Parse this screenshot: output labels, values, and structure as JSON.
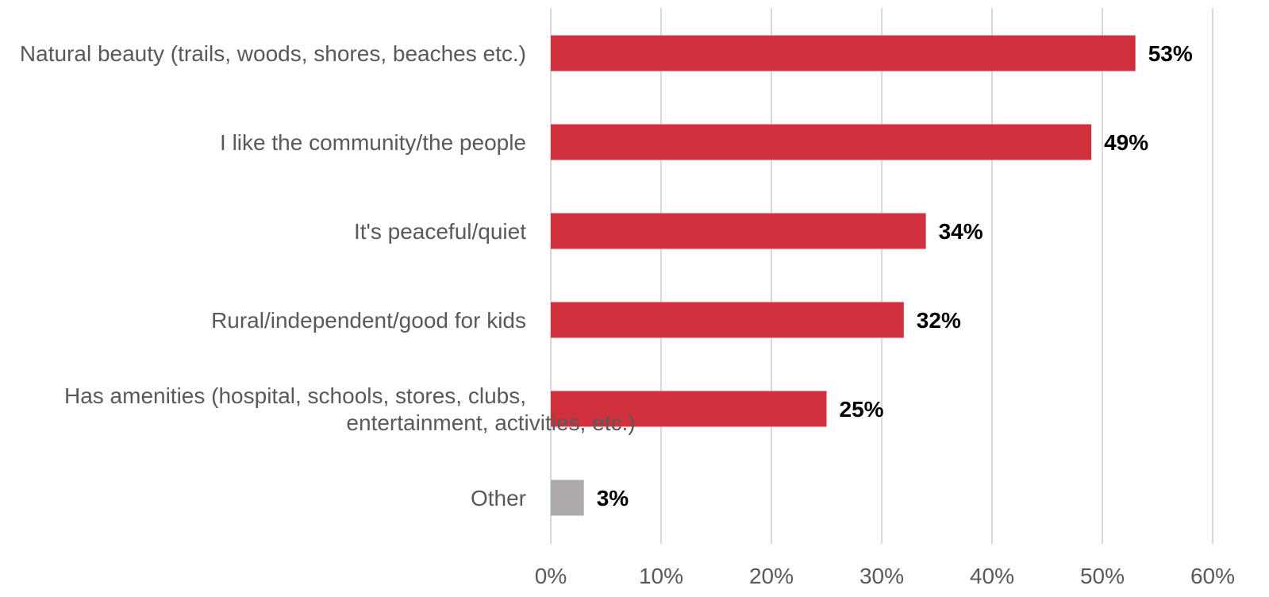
{
  "chart_data": {
    "type": "bar",
    "orientation": "horizontal",
    "categories": [
      [
        "Natural beauty (trails, woods, shores, beaches etc.)"
      ],
      [
        "I like the community/the people"
      ],
      [
        "It's peaceful/quiet"
      ],
      [
        "Rural/independent/good for kids"
      ],
      [
        "Has amenities (hospital, schools, stores, clubs,",
        "entertainment, activities, etc.)"
      ],
      [
        "Other"
      ]
    ],
    "values": [
      53,
      49,
      34,
      32,
      25,
      3
    ],
    "data_labels": [
      "53%",
      "49%",
      "34%",
      "32%",
      "25%",
      "3%"
    ],
    "bar_colors": [
      "#d1313d",
      "#d1313d",
      "#d1313d",
      "#d1313d",
      "#d1313d",
      "#aeaaaa"
    ],
    "xlim": [
      0,
      60
    ],
    "xticks": [
      0,
      10,
      20,
      30,
      40,
      50,
      60
    ],
    "xtick_labels": [
      "0%",
      "10%",
      "20%",
      "30%",
      "40%",
      "50%",
      "60%"
    ],
    "grid": true,
    "legend": "none"
  }
}
